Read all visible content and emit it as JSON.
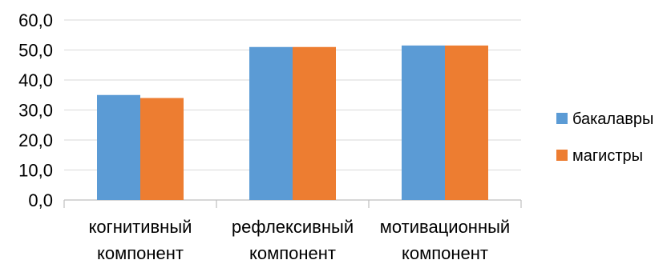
{
  "chart_data": {
    "type": "bar",
    "title": "",
    "xlabel": "",
    "ylabel": "",
    "categories": [
      [
        "когнитивный",
        "компонент"
      ],
      [
        "рефлексивный",
        "компонент"
      ],
      [
        "мотивационный",
        "компонент"
      ]
    ],
    "series": [
      {
        "name": "бакалавры",
        "color": "#5B9BD5",
        "values": [
          35.0,
          51.0,
          51.5
        ]
      },
      {
        "name": "магистры",
        "color": "#ED7D31",
        "values": [
          34.0,
          51.0,
          51.5
        ]
      }
    ],
    "ylim": [
      0,
      60
    ],
    "yticks": [
      "0,0",
      "10,0",
      "20,0",
      "30,0",
      "40,0",
      "50,0",
      "60,0"
    ],
    "grid": true,
    "legend_position": "right"
  }
}
